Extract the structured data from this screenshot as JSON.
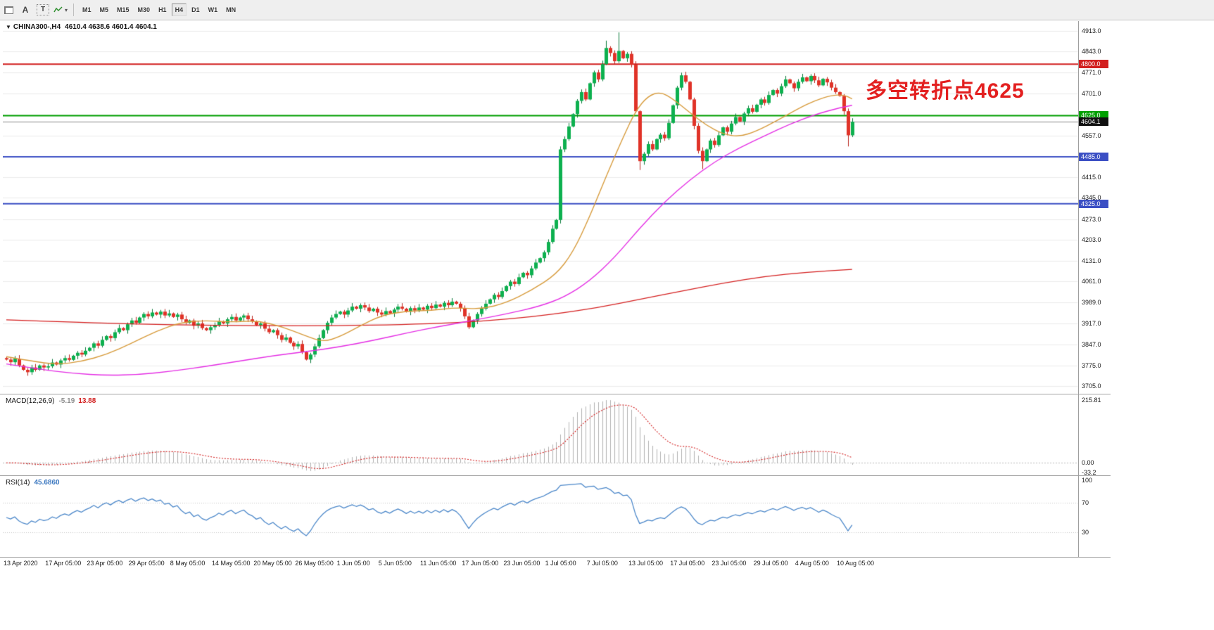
{
  "icons": {
    "symbol_dropdown": "▼",
    "tool_caret": "▾"
  },
  "toolbar": {
    "a_label": "A",
    "t_label": "T",
    "timeframes": [
      "M1",
      "M5",
      "M15",
      "M30",
      "H1",
      "H4",
      "D1",
      "W1",
      "MN"
    ],
    "active_timeframe": "H4"
  },
  "chart": {
    "symbol_period": "CHINA300-,H4",
    "ohlc_text": "4610.4 4638.6 4601.4 4604.1",
    "annotation": "多空转折点4625",
    "price_ticks": [
      "4913.0",
      "4843.0",
      "4771.0",
      "4701.0",
      "4557.0",
      "4415.0",
      "4345.0",
      "4273.0",
      "4203.0",
      "4131.0",
      "4061.0",
      "3989.0",
      "3917.0",
      "3847.0",
      "3775.0",
      "3705.0"
    ],
    "grid_prices": [
      4913,
      4843,
      4771,
      4701,
      4629,
      4557,
      4485,
      4415,
      4345,
      4273,
      4203,
      4131,
      4061,
      3989,
      3917,
      3847,
      3775,
      3705
    ],
    "levels": [
      {
        "price": 4800.0,
        "label": "4800.0",
        "color": "#d21f1f",
        "badge": "#d21f1f",
        "width": 2
      },
      {
        "price": 4625.0,
        "label": "4625.0",
        "color": "#00a000",
        "badge": "#00a000",
        "width": 2
      },
      {
        "price": 4604.1,
        "label": "4604.1",
        "color": "#8a8a8a",
        "badge": "#101010",
        "width": 1
      },
      {
        "price": 4485.0,
        "label": "4485.0",
        "color": "#3b4fc4",
        "badge": "#3b4fc4",
        "width": 2
      },
      {
        "price": 4325.0,
        "label": "4325.0",
        "color": "#3b4fc4",
        "badge": "#3b4fc4",
        "width": 2
      }
    ],
    "date_labels": [
      "13 Apr 2020",
      "17 Apr 05:00",
      "23 Apr 05:00",
      "29 Apr 05:00",
      "8 May 05:00",
      "14 May 05:00",
      "20 May 05:00",
      "26 May 05:00",
      "1 Jun 05:00",
      "5 Jun 05:00",
      "11 Jun 05:00",
      "17 Jun 05:00",
      "23 Jun 05:00",
      "1 Jul 05:00",
      "7 Jul 05:00",
      "13 Jul 05:00",
      "17 Jul 05:00",
      "23 Jul 05:00",
      "29 Jul 05:00",
      "4 Aug 05:00",
      "10 Aug 05:00"
    ],
    "colors": {
      "up": "#0db04f",
      "up_line": "#087a38",
      "down": "#e03328",
      "down_line": "#b8241c",
      "ma_fast": "#d79b3c",
      "ma_mid": "#e42ee4",
      "ma_slow": "#d42020",
      "grid": "#ebebeb",
      "macd_hist": "#b0b0b0",
      "macd_signal": "#d21f1f",
      "rsi": "#4b87c9",
      "rsi_level": "#c4c4c4"
    }
  },
  "macd": {
    "label": "MACD(12,26,9)",
    "value_main": "-5.19",
    "value_signal": "13.88",
    "axis": [
      "215.81",
      "0.00",
      "-33.2"
    ]
  },
  "rsi": {
    "label": "RSI(14)",
    "value": "45.6860",
    "axis": [
      "100",
      "70",
      "30"
    ]
  },
  "chart_data": {
    "type": "candlestick",
    "symbol": "CHINA300",
    "timeframe": "H4",
    "ylim": [
      3705,
      4913
    ],
    "current_bar_ohlc": [
      4610.4,
      4638.6,
      4601.4,
      4604.1
    ],
    "open_first": 3800,
    "closes": [
      3795,
      3786,
      3798,
      3775,
      3760,
      3752,
      3768,
      3760,
      3775,
      3768,
      3772,
      3785,
      3778,
      3792,
      3800,
      3794,
      3808,
      3818,
      3812,
      3825,
      3835,
      3850,
      3842,
      3862,
      3875,
      3868,
      3888,
      3902,
      3895,
      3915,
      3928,
      3920,
      3938,
      3950,
      3942,
      3955,
      3948,
      3958,
      3945,
      3952,
      3940,
      3948,
      3932,
      3920,
      3928,
      3910,
      3918,
      3902,
      3895,
      3905,
      3912,
      3925,
      3918,
      3932,
      3940,
      3928,
      3938,
      3945,
      3932,
      3925,
      3912,
      3918,
      3900,
      3888,
      3895,
      3878,
      3862,
      3870,
      3852,
      3840,
      3848,
      3820,
      3795,
      3812,
      3840,
      3868,
      3895,
      3920,
      3938,
      3950,
      3958,
      3948,
      3962,
      3975,
      3968,
      3980,
      3972,
      3960,
      3968,
      3955,
      3948,
      3960,
      3952,
      3965,
      3975,
      3968,
      3958,
      3970,
      3962,
      3972,
      3965,
      3978,
      3970,
      3982,
      3975,
      3988,
      3980,
      3992,
      3985,
      3970,
      3942,
      3905,
      3928,
      3950,
      3968,
      3985,
      4000,
      4015,
      4008,
      4028,
      4045,
      4060,
      4052,
      4075,
      4090,
      4082,
      4105,
      4125,
      4140,
      4160,
      4195,
      4240,
      4270,
      4510,
      4545,
      4588,
      4630,
      4675,
      4705,
      4680,
      4735,
      4772,
      4748,
      4800,
      4855,
      4838,
      4810,
      4845,
      4820,
      4835,
      4798,
      4640,
      4470,
      4495,
      4528,
      4510,
      4545,
      4560,
      4548,
      4600,
      4660,
      4720,
      4762,
      4740,
      4680,
      4590,
      4505,
      4470,
      4510,
      4540,
      4525,
      4558,
      4585,
      4570,
      4598,
      4620,
      4605,
      4632,
      4650,
      4638,
      4662,
      4680,
      4668,
      4695,
      4712,
      4700,
      4725,
      4748,
      4735,
      4718,
      4740,
      4755,
      4742,
      4760,
      4745,
      4728,
      4750,
      4738,
      4720,
      4705,
      4692,
      4640,
      4558,
      4604
    ],
    "high_overrides": {
      "133": 4520,
      "144": 4880,
      "147": 4908
    },
    "low_overrides": {
      "152": 4440,
      "167": 4443,
      "202": 4520
    },
    "ma_fast": [
      [
        0,
        3805
      ],
      [
        6,
        3790
      ],
      [
        12,
        3778
      ],
      [
        18,
        3788
      ],
      [
        24,
        3812
      ],
      [
        30,
        3850
      ],
      [
        36,
        3892
      ],
      [
        42,
        3922
      ],
      [
        48,
        3928
      ],
      [
        54,
        3922
      ],
      [
        60,
        3928
      ],
      [
        66,
        3908
      ],
      [
        72,
        3875
      ],
      [
        76,
        3855
      ],
      [
        80,
        3872
      ],
      [
        85,
        3910
      ],
      [
        90,
        3945
      ],
      [
        96,
        3960
      ],
      [
        102,
        3962
      ],
      [
        108,
        3972
      ],
      [
        114,
        3966
      ],
      [
        120,
        3988
      ],
      [
        126,
        4030
      ],
      [
        132,
        4085
      ],
      [
        136,
        4160
      ],
      [
        140,
        4280
      ],
      [
        144,
        4420
      ],
      [
        148,
        4550
      ],
      [
        151,
        4640
      ],
      [
        154,
        4692
      ],
      [
        157,
        4706
      ],
      [
        160,
        4682
      ],
      [
        164,
        4636
      ],
      [
        168,
        4592
      ],
      [
        172,
        4562
      ],
      [
        176,
        4553
      ],
      [
        180,
        4572
      ],
      [
        185,
        4608
      ],
      [
        190,
        4648
      ],
      [
        194,
        4676
      ],
      [
        198,
        4694
      ],
      [
        201,
        4696
      ],
      [
        203,
        4682
      ]
    ],
    "ma_mid": [
      [
        0,
        3780
      ],
      [
        8,
        3762
      ],
      [
        16,
        3748
      ],
      [
        24,
        3741
      ],
      [
        32,
        3744
      ],
      [
        40,
        3756
      ],
      [
        48,
        3772
      ],
      [
        56,
        3790
      ],
      [
        64,
        3808
      ],
      [
        72,
        3822
      ],
      [
        80,
        3838
      ],
      [
        88,
        3860
      ],
      [
        96,
        3885
      ],
      [
        104,
        3908
      ],
      [
        112,
        3928
      ],
      [
        120,
        3950
      ],
      [
        128,
        3976
      ],
      [
        134,
        4008
      ],
      [
        140,
        4062
      ],
      [
        146,
        4142
      ],
      [
        152,
        4242
      ],
      [
        158,
        4332
      ],
      [
        164,
        4406
      ],
      [
        170,
        4468
      ],
      [
        176,
        4516
      ],
      [
        182,
        4556
      ],
      [
        188,
        4596
      ],
      [
        194,
        4628
      ],
      [
        199,
        4648
      ],
      [
        203,
        4660
      ]
    ],
    "ma_slow": [
      [
        0,
        3930
      ],
      [
        20,
        3920
      ],
      [
        40,
        3913
      ],
      [
        60,
        3910
      ],
      [
        80,
        3910
      ],
      [
        95,
        3914
      ],
      [
        108,
        3920
      ],
      [
        120,
        3932
      ],
      [
        132,
        3950
      ],
      [
        142,
        3972
      ],
      [
        152,
        4000
      ],
      [
        162,
        4028
      ],
      [
        172,
        4055
      ],
      [
        182,
        4078
      ],
      [
        192,
        4092
      ],
      [
        203,
        4102
      ]
    ],
    "hlines": [
      4800.0,
      4625.0,
      4604.1,
      4485.0,
      4325.0
    ],
    "indicators": [
      {
        "name": "MACD",
        "params": [
          12,
          26,
          9
        ],
        "last_main": -5.19,
        "last_signal": 13.88,
        "ymax": 215.81,
        "ymin": -33.2
      },
      {
        "name": "RSI",
        "params": [
          14
        ],
        "last": 45.686,
        "levels": [
          30,
          70
        ],
        "range": [
          0,
          100
        ]
      }
    ]
  }
}
